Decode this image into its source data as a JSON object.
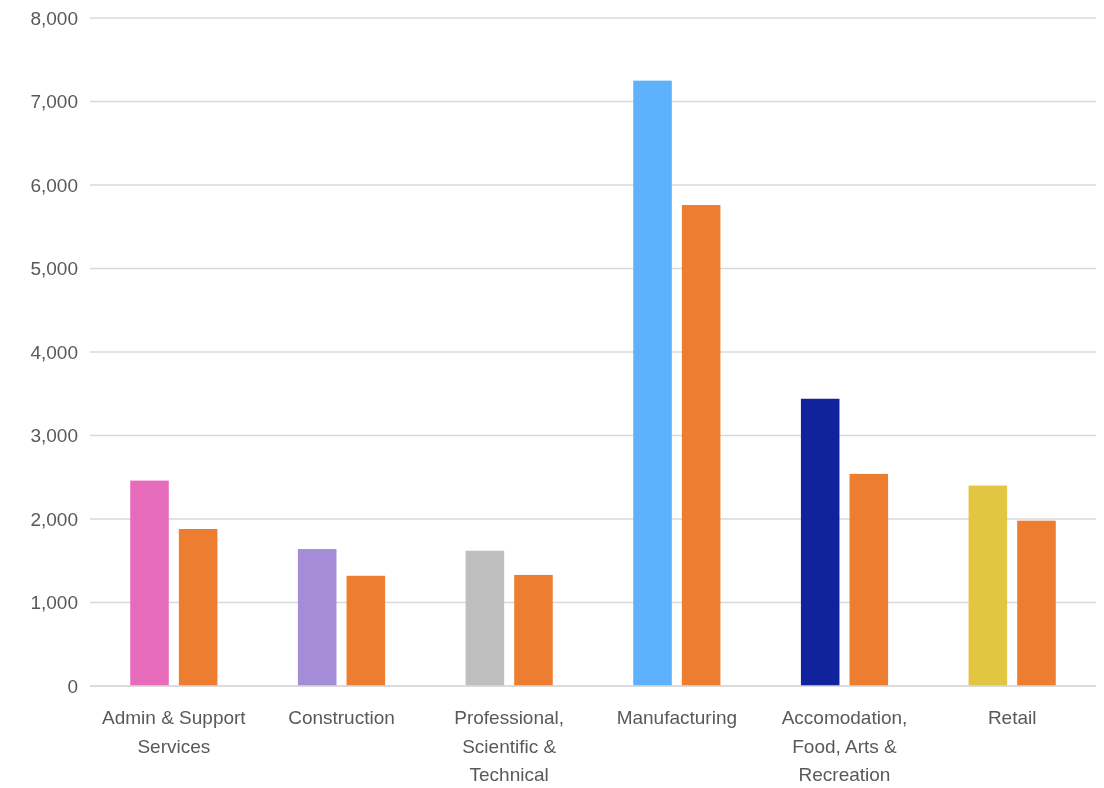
{
  "chart_data": {
    "type": "bar",
    "categories": [
      "Admin & Support Services",
      "Construction",
      "Professional, Scientific & Technical",
      "Manufacturing",
      "Accomodation, Food, Arts & Recreation",
      "Retail"
    ],
    "series": [
      {
        "colors": [
          "#e66cbb",
          "#a48cd6",
          "#bfbfbf",
          "#5eb1fc",
          "#10239c",
          "#e2c642"
        ],
        "values": [
          2460,
          1640,
          1620,
          7250,
          3440,
          2400
        ]
      },
      {
        "color": "#ed7d31",
        "values": [
          1880,
          1320,
          1330,
          5760,
          2540,
          1980
        ]
      }
    ],
    "ylim": [
      0,
      8000
    ],
    "yticks": [
      {
        "value": 0,
        "label": "0"
      },
      {
        "value": 1000,
        "label": "1,000"
      },
      {
        "value": 2000,
        "label": "2,000"
      },
      {
        "value": 3000,
        "label": "3,000"
      },
      {
        "value": 4000,
        "label": "4,000"
      },
      {
        "value": 5000,
        "label": "5,000"
      },
      {
        "value": 6000,
        "label": "6,000"
      },
      {
        "value": 7000,
        "label": "7,000"
      },
      {
        "value": 8000,
        "label": "8,000"
      }
    ],
    "grid": "y"
  }
}
